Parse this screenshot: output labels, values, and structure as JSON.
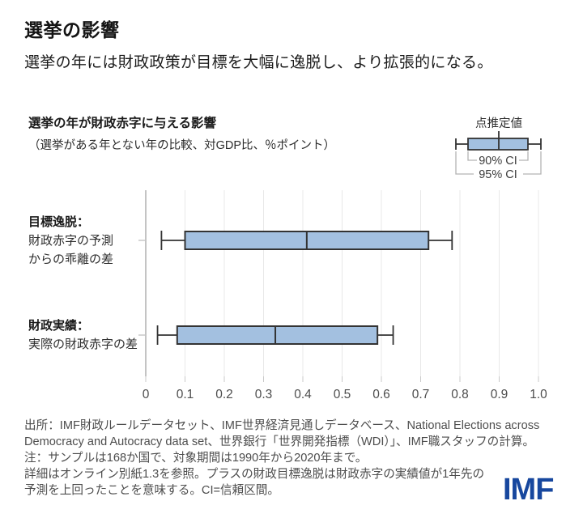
{
  "header": {
    "title": "選挙の影響",
    "subtitle": "選挙の年には財政政策が目標を大幅に逸脱し、より拡張的になる。"
  },
  "chart_data": {
    "type": "boxplot",
    "orientation": "horizontal",
    "title": "選挙の年が財政赤字に与える影響",
    "subtitle": "（選挙がある年とない年の比較、対GDP比、％ポイント）",
    "xlim": [
      0,
      1.0
    ],
    "x_ticks": [
      0,
      0.1,
      0.2,
      0.3,
      0.4,
      0.5,
      0.6,
      0.7,
      0.8,
      0.9,
      1.0
    ],
    "x_tick_labels": [
      "0",
      "0.1",
      "0.2",
      "0.3",
      "0.4",
      "0.5",
      "0.6",
      "0.7",
      "0.8",
      "0.9",
      "1.0"
    ],
    "grid": "vertical-on",
    "legend": {
      "position": "top-right",
      "point_label": "点推定値",
      "box_label": "90% CI",
      "whisker_label": "95% CI"
    },
    "series": [
      {
        "label_lines": [
          "目標逸脱：",
          "財政赤字の予測",
          "からの乖離の差"
        ],
        "point_estimate": 0.41,
        "ci90": [
          0.1,
          0.72
        ],
        "ci95": [
          0.04,
          0.78
        ]
      },
      {
        "label_lines": [
          "財政実績：",
          "実際の財政赤字の差"
        ],
        "point_estimate": 0.33,
        "ci90": [
          0.08,
          0.59
        ],
        "ci95": [
          0.03,
          0.63
        ]
      }
    ],
    "colors": {
      "box_fill": "#a3c0e0",
      "box_stroke": "#333333",
      "grid": "#e8e8e8",
      "zero_line": "#b0b0b0",
      "tick": "#c9c9c9",
      "tick_label": "#4d4d4d",
      "legend_bracket": "#b3b3b3",
      "imf_blue": "#17479e"
    }
  },
  "footer": {
    "lines": [
      "出所：IMF財政ルールデータセット、IMF世界経済見通しデータベース、National Elections across",
      "Democracy and Autocracy data set、世界銀行「世界開発指標（WDI）」、IMF職スタッフの計算。",
      "注：サンプルは168か国で、対象期間は1990年から2020年まで。",
      "詳細はオンライン別紙1.3を参照。プラスの財政目標逸脱は財政赤字の実績値が1年先の",
      "予測を上回ったことを意味する。CI=信頼区間。"
    ],
    "logo": "IMF"
  }
}
